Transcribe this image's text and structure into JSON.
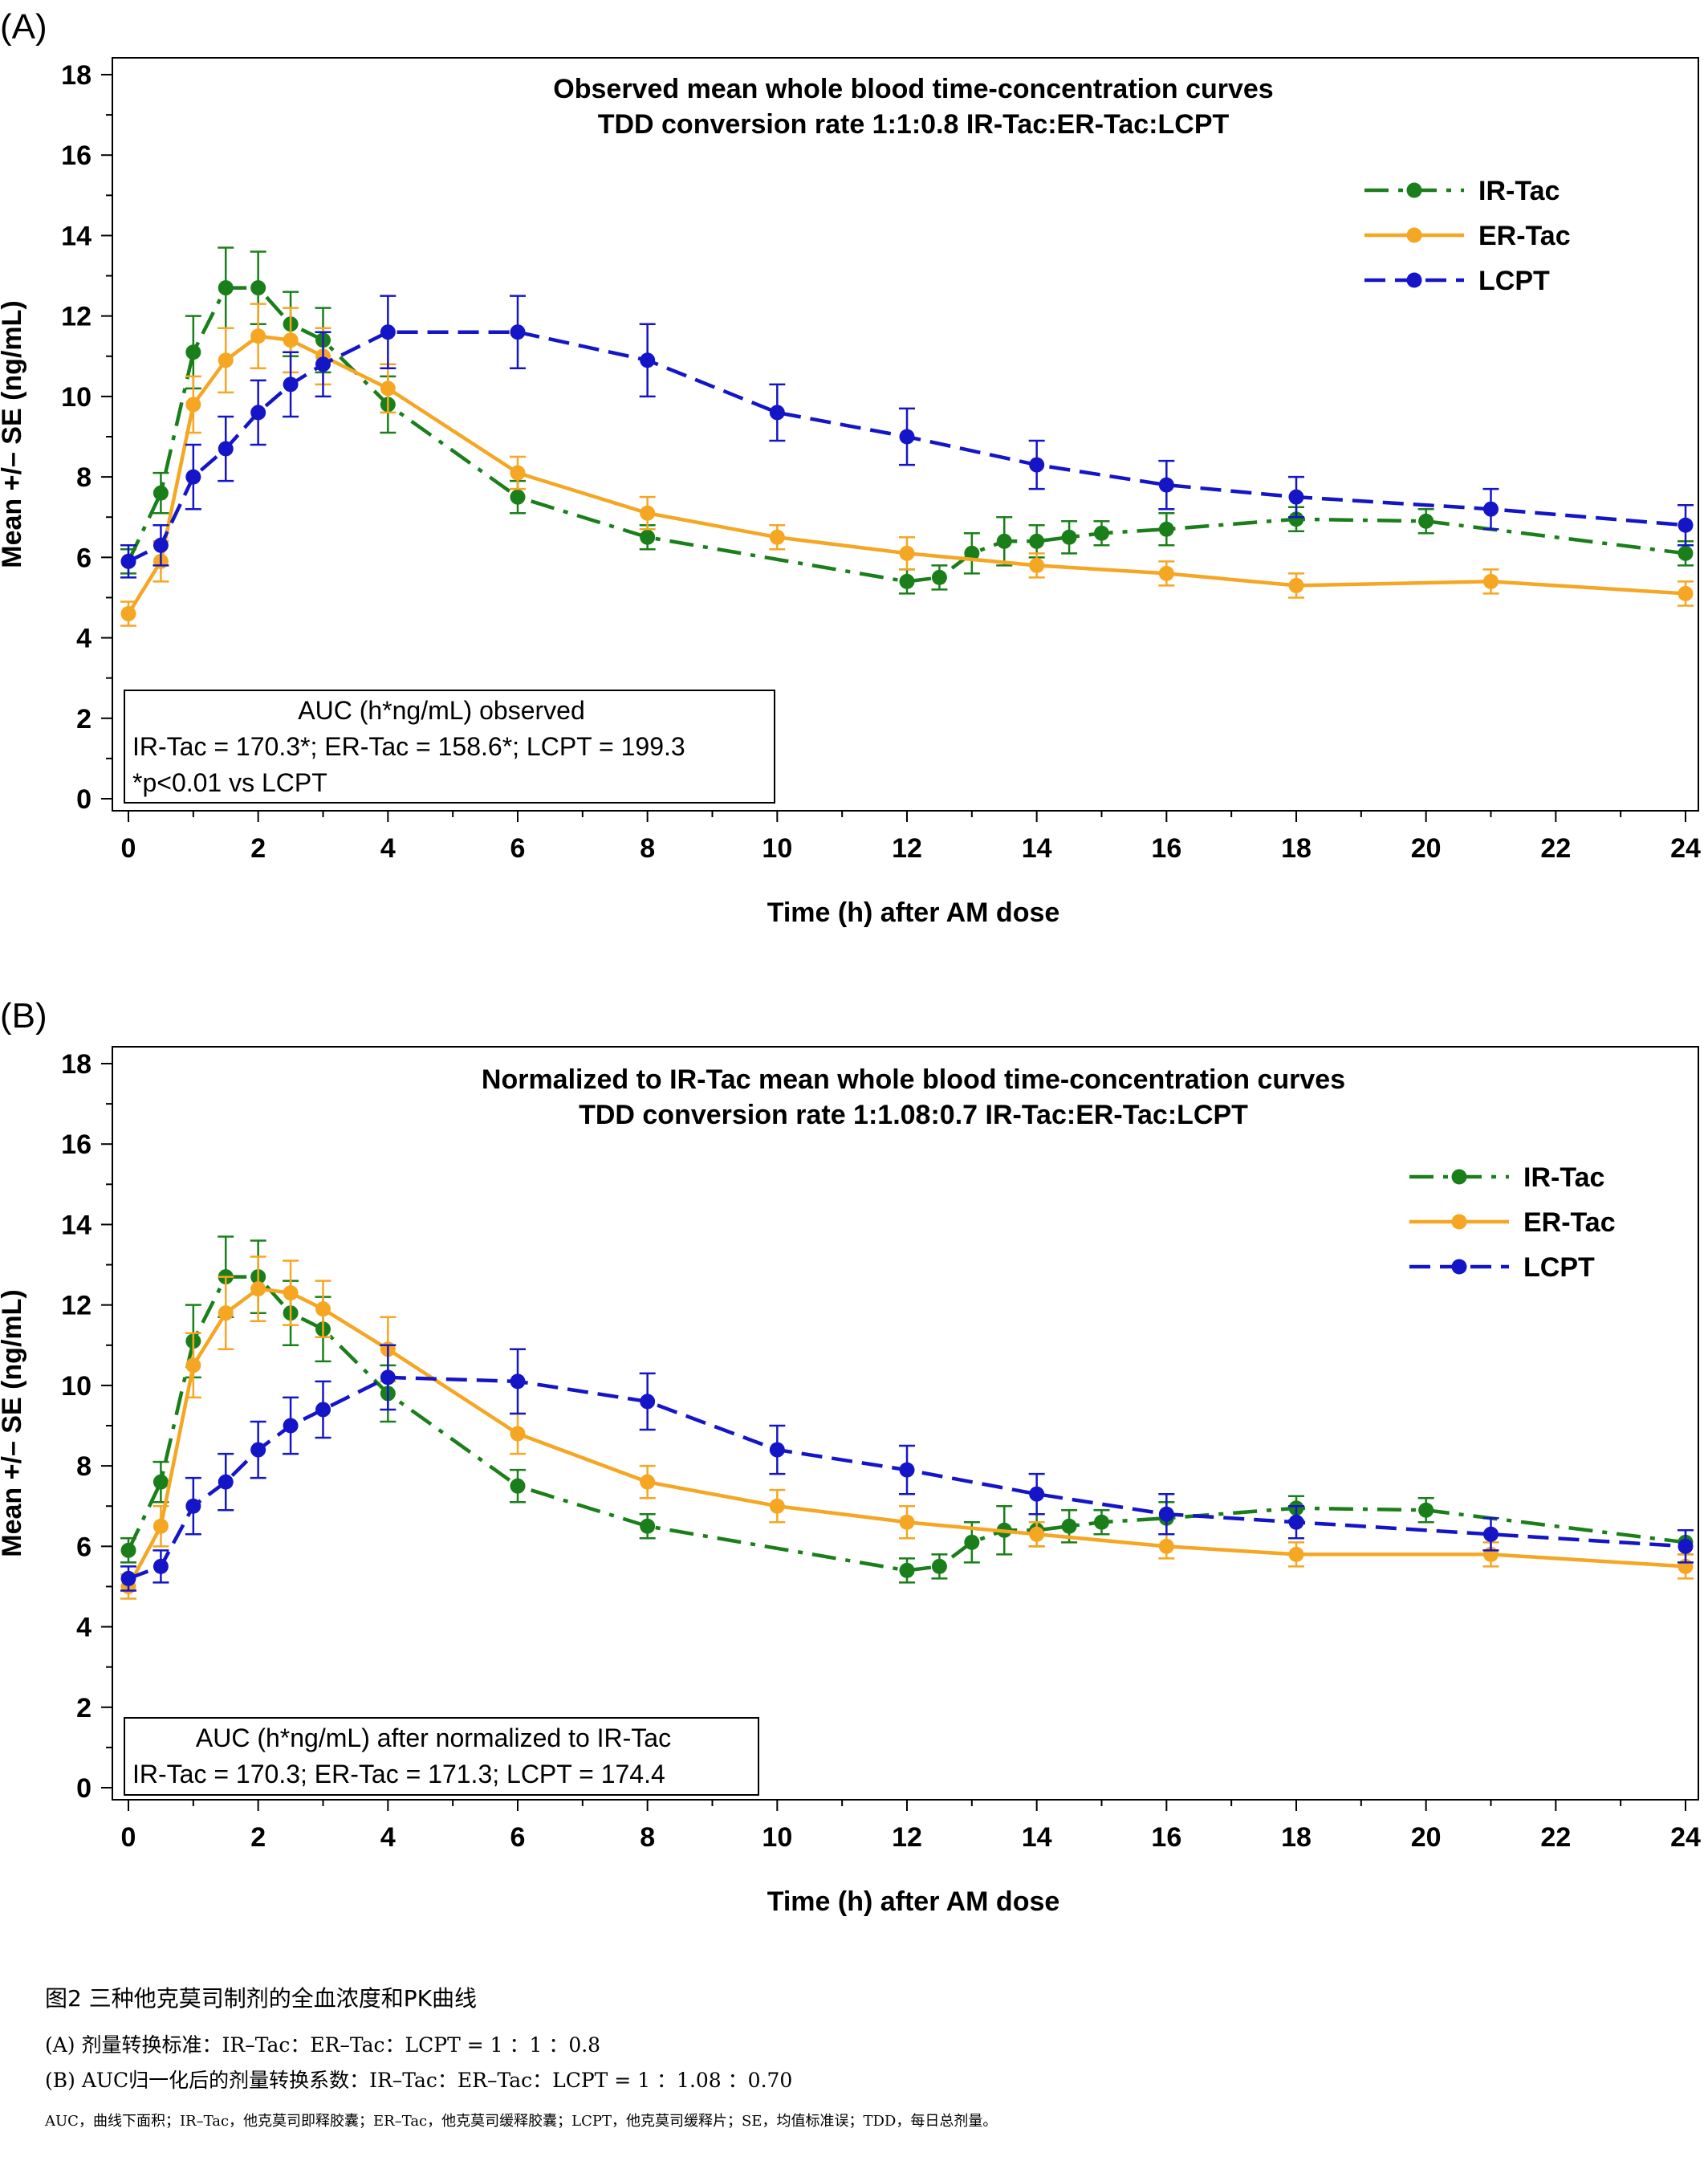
{
  "caption": {
    "title": "图2 三种他克莫司制剂的全血浓度和PK曲线",
    "line_a": "(A) 剂量转换标准：IR–Tac：ER–Tac：LCPT = 1 ：1 ：0.8",
    "line_b": "(B) AUC归一化后的剂量转换系数：IR–Tac：ER–Tac：LCPT = 1 ：1.08 ：0.70",
    "abbreviations": "AUC，曲线下面积；IR–Tac，他克莫司即释胶囊；ER–Tac，他克莫司缓释胶囊；LCPT，他克莫司缓释片；SE，均值标准误；TDD，每日总剂量。"
  },
  "colors": {
    "ir": "#1a7f1a",
    "er": "#f5a623",
    "lcpt": "#1515c8"
  },
  "chart_data": [
    {
      "type": "line",
      "panel_label": "(A)",
      "title": "Observed mean whole blood time-concentration curves",
      "subtitle": "TDD conversion rate 1:1:0.8 IR-Tac:ER-Tac:LCPT",
      "xlabel": "Time (h) after AM dose",
      "ylabel": "Mean +/– SE (ng/mL)",
      "xlim": [
        0,
        24
      ],
      "ylim": [
        0,
        18
      ],
      "x_ticks": [
        0,
        2,
        4,
        6,
        8,
        10,
        12,
        14,
        16,
        18,
        20,
        22,
        24
      ],
      "y_ticks": [
        0,
        2,
        4,
        6,
        8,
        10,
        12,
        14,
        16,
        18
      ],
      "legend_position": "top-right",
      "series": [
        {
          "name": "IR-Tac",
          "color_key": "ir",
          "dash": "dashdot",
          "x": [
            0,
            0.5,
            1,
            1.5,
            2,
            2.5,
            3,
            4,
            6,
            8,
            12,
            12.5,
            13,
            13.5,
            14,
            14.5,
            15,
            16,
            18,
            20,
            24
          ],
          "y": [
            5.9,
            7.6,
            11.1,
            12.7,
            12.7,
            11.8,
            11.4,
            9.8,
            7.5,
            6.5,
            5.4,
            5.5,
            6.1,
            6.4,
            6.4,
            6.5,
            6.6,
            6.7,
            6.95,
            6.9,
            6.1
          ],
          "se": [
            0.3,
            0.5,
            0.9,
            1.0,
            0.9,
            0.8,
            0.8,
            0.7,
            0.4,
            0.3,
            0.3,
            0.3,
            0.5,
            0.6,
            0.4,
            0.4,
            0.3,
            0.4,
            0.3,
            0.3,
            0.3
          ]
        },
        {
          "name": "ER-Tac",
          "color_key": "er",
          "dash": "solid",
          "x": [
            0,
            0.5,
            1,
            1.5,
            2,
            2.5,
            3,
            4,
            6,
            8,
            10,
            12,
            14,
            16,
            18,
            21,
            24
          ],
          "y": [
            4.6,
            5.9,
            9.8,
            10.9,
            11.5,
            11.4,
            11.0,
            10.2,
            8.1,
            7.1,
            6.5,
            6.1,
            5.8,
            5.6,
            5.3,
            5.4,
            5.1
          ],
          "se": [
            0.3,
            0.5,
            0.7,
            0.8,
            0.8,
            0.8,
            0.7,
            0.6,
            0.4,
            0.4,
            0.3,
            0.4,
            0.3,
            0.3,
            0.3,
            0.3,
            0.3
          ]
        },
        {
          "name": "LCPT",
          "color_key": "lcpt",
          "dash": "dashed",
          "x": [
            0,
            0.5,
            1,
            1.5,
            2,
            2.5,
            3,
            4,
            6,
            8,
            10,
            12,
            14,
            16,
            18,
            21,
            24
          ],
          "y": [
            5.9,
            6.3,
            8.0,
            8.7,
            9.6,
            10.3,
            10.8,
            11.6,
            11.6,
            10.9,
            9.6,
            9.0,
            8.3,
            7.8,
            7.5,
            7.2,
            6.8
          ],
          "se": [
            0.4,
            0.5,
            0.8,
            0.8,
            0.8,
            0.8,
            0.8,
            0.9,
            0.9,
            0.9,
            0.7,
            0.7,
            0.6,
            0.6,
            0.5,
            0.5,
            0.5
          ]
        }
      ],
      "auc_box": {
        "heading": "AUC (h*ng/mL) observed",
        "values": "IR-Tac = 170.3*; ER-Tac = 158.6*; LCPT = 199.3",
        "note": "*p<0.01 vs LCPT"
      }
    },
    {
      "type": "line",
      "panel_label": "(B)",
      "title": "Normalized to IR-Tac mean whole blood time-concentration curves",
      "subtitle": "TDD conversion rate 1:1.08:0.7 IR-Tac:ER-Tac:LCPT",
      "xlabel": "Time (h) after AM dose",
      "ylabel": "Mean +/– SE (ng/mL)",
      "xlim": [
        0,
        24
      ],
      "ylim": [
        0,
        18
      ],
      "x_ticks": [
        0,
        2,
        4,
        6,
        8,
        10,
        12,
        14,
        16,
        18,
        20,
        22,
        24
      ],
      "y_ticks": [
        0,
        2,
        4,
        6,
        8,
        10,
        12,
        14,
        16,
        18
      ],
      "legend_position": "top-right",
      "series": [
        {
          "name": "IR-Tac",
          "color_key": "ir",
          "dash": "dashdot",
          "x": [
            0,
            0.5,
            1,
            1.5,
            2,
            2.5,
            3,
            4,
            6,
            8,
            12,
            12.5,
            13,
            13.5,
            14,
            14.5,
            15,
            16,
            18,
            20,
            24
          ],
          "y": [
            5.9,
            7.6,
            11.1,
            12.7,
            12.7,
            11.8,
            11.4,
            9.8,
            7.5,
            6.5,
            5.4,
            5.5,
            6.1,
            6.4,
            6.4,
            6.5,
            6.6,
            6.7,
            6.95,
            6.9,
            6.1
          ],
          "se": [
            0.3,
            0.5,
            0.9,
            1.0,
            0.9,
            0.8,
            0.8,
            0.7,
            0.4,
            0.3,
            0.3,
            0.3,
            0.5,
            0.6,
            0.4,
            0.4,
            0.3,
            0.4,
            0.3,
            0.3,
            0.3
          ]
        },
        {
          "name": "ER-Tac",
          "color_key": "er",
          "dash": "solid",
          "x": [
            0,
            0.5,
            1,
            1.5,
            2,
            2.5,
            3,
            4,
            6,
            8,
            10,
            12,
            14,
            16,
            18,
            21,
            24
          ],
          "y": [
            5.0,
            6.5,
            10.5,
            11.8,
            12.4,
            12.3,
            11.9,
            10.9,
            8.8,
            7.6,
            7.0,
            6.6,
            6.3,
            6.0,
            5.8,
            5.8,
            5.5
          ],
          "se": [
            0.3,
            0.5,
            0.8,
            0.9,
            0.8,
            0.8,
            0.7,
            0.8,
            0.5,
            0.4,
            0.4,
            0.4,
            0.3,
            0.3,
            0.3,
            0.3,
            0.3
          ]
        },
        {
          "name": "LCPT",
          "color_key": "lcpt",
          "dash": "dashed",
          "x": [
            0,
            0.5,
            1,
            1.5,
            2,
            2.5,
            3,
            4,
            6,
            8,
            10,
            12,
            14,
            16,
            18,
            21,
            24
          ],
          "y": [
            5.2,
            5.5,
            7.0,
            7.6,
            8.4,
            9.0,
            9.4,
            10.2,
            10.1,
            9.6,
            8.4,
            7.9,
            7.3,
            6.8,
            6.6,
            6.3,
            6.0
          ],
          "se": [
            0.3,
            0.4,
            0.7,
            0.7,
            0.7,
            0.7,
            0.7,
            0.8,
            0.8,
            0.7,
            0.6,
            0.6,
            0.5,
            0.5,
            0.4,
            0.4,
            0.4
          ]
        }
      ],
      "auc_box": {
        "heading": "AUC (h*ng/mL) after normalized to IR-Tac",
        "values": "IR-Tac = 170.3; ER-Tac = 171.3; LCPT = 174.4",
        "note": ""
      }
    }
  ]
}
